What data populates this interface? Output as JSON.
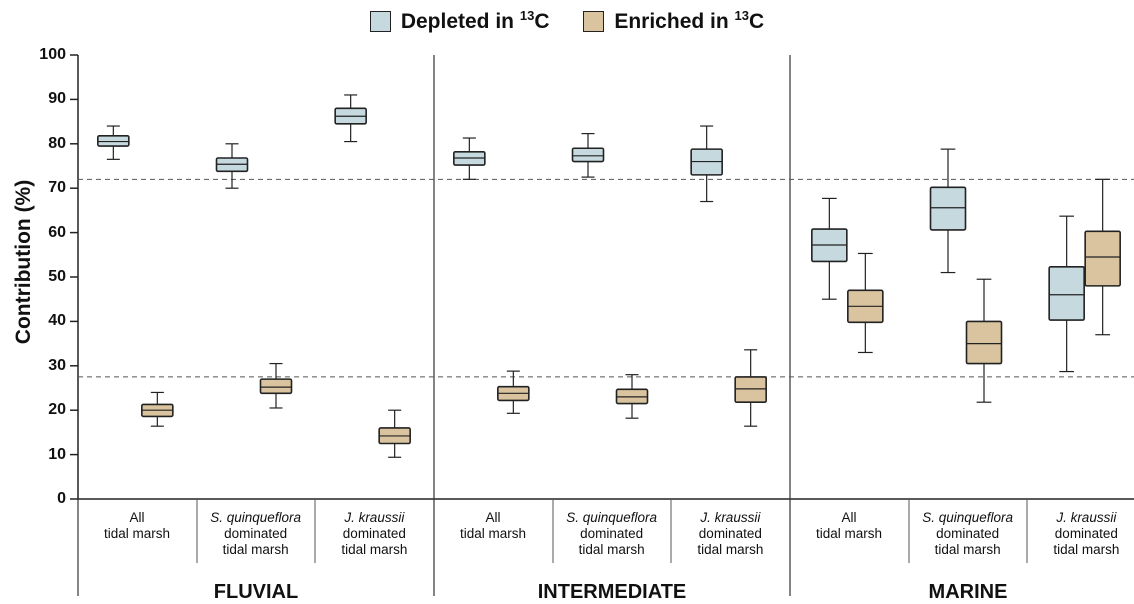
{
  "legend": {
    "depleted": {
      "label": "Depleted in ",
      "sup": "13",
      "tail": "C",
      "color": "#c5d9df"
    },
    "enriched": {
      "label": "Enriched in ",
      "sup": "13",
      "tail": "C",
      "color": "#d9c49f"
    }
  },
  "axis": {
    "ylabel": "Contribution (%)",
    "ticks": [
      "0",
      "10",
      "20",
      "30",
      "40",
      "50",
      "60",
      "70",
      "80",
      "90",
      "100"
    ]
  },
  "categories": [
    {
      "line1": "All",
      "line2": "tidal marsh",
      "line3": ""
    },
    {
      "line1": "S. quinqueflora",
      "line2": "dominated",
      "line3": "tidal marsh"
    },
    {
      "line1": "J. kraussii",
      "line2": "dominated",
      "line3": "tidal marsh"
    }
  ],
  "regions": [
    "FLUVIAL",
    "INTERMEDIATE",
    "MARINE"
  ],
  "chart_data": {
    "type": "box",
    "ylabel": "Contribution (%)",
    "ylim": [
      0,
      100
    ],
    "grid": false,
    "legend_position": "top-center",
    "reference_lines": [
      72,
      27.5
    ],
    "series": [
      {
        "name": "Depleted in 13C",
        "color": "#c5d9df",
        "boxes": [
          {
            "region": "FLUVIAL",
            "category": "All tidal marsh",
            "min": 76.5,
            "q1": 79.5,
            "median": 80.5,
            "q3": 81.8,
            "max": 84
          },
          {
            "region": "FLUVIAL",
            "category": "S. quinqueflora dominated tidal marsh",
            "min": 70,
            "q1": 73.8,
            "median": 75.4,
            "q3": 76.8,
            "max": 80
          },
          {
            "region": "FLUVIAL",
            "category": "J. kraussii dominated tidal marsh",
            "min": 80.5,
            "q1": 84.5,
            "median": 86.2,
            "q3": 88,
            "max": 91
          },
          {
            "region": "INTERMEDIATE",
            "category": "All tidal marsh",
            "min": 72,
            "q1": 75.2,
            "median": 76.8,
            "q3": 78.2,
            "max": 81.3
          },
          {
            "region": "INTERMEDIATE",
            "category": "S. quinqueflora dominated tidal marsh",
            "min": 72.5,
            "q1": 76,
            "median": 77.3,
            "q3": 79,
            "max": 82.3
          },
          {
            "region": "INTERMEDIATE",
            "category": "J. kraussii dominated tidal marsh",
            "min": 67,
            "q1": 73,
            "median": 76,
            "q3": 78.8,
            "max": 84
          },
          {
            "region": "MARINE",
            "category": "All tidal marsh",
            "min": 45,
            "q1": 53.5,
            "median": 57.2,
            "q3": 60.8,
            "max": 67.7
          },
          {
            "region": "MARINE",
            "category": "S. quinqueflora dominated tidal marsh",
            "min": 51,
            "q1": 60.6,
            "median": 65.6,
            "q3": 70.2,
            "max": 78.8
          },
          {
            "region": "MARINE",
            "category": "J. kraussii dominated tidal marsh",
            "min": 28.7,
            "q1": 40.3,
            "median": 46,
            "q3": 52.3,
            "max": 63.7
          }
        ]
      },
      {
        "name": "Enriched in 13C",
        "color": "#d9c49f",
        "boxes": [
          {
            "region": "FLUVIAL",
            "category": "All tidal marsh",
            "min": 16.4,
            "q1": 18.6,
            "median": 20,
            "q3": 21.3,
            "max": 24
          },
          {
            "region": "FLUVIAL",
            "category": "S. quinqueflora dominated tidal marsh",
            "min": 20.5,
            "q1": 23.8,
            "median": 25.2,
            "q3": 27,
            "max": 30.5
          },
          {
            "region": "FLUVIAL",
            "category": "J. kraussii dominated tidal marsh",
            "min": 9.4,
            "q1": 12.5,
            "median": 14.2,
            "q3": 16,
            "max": 20
          },
          {
            "region": "INTERMEDIATE",
            "category": "All tidal marsh",
            "min": 19.3,
            "q1": 22.2,
            "median": 23.8,
            "q3": 25.3,
            "max": 28.8
          },
          {
            "region": "INTERMEDIATE",
            "category": "S. quinqueflora dominated tidal marsh",
            "min": 18.2,
            "q1": 21.5,
            "median": 23,
            "q3": 24.7,
            "max": 28
          },
          {
            "region": "INTERMEDIATE",
            "category": "J. kraussii dominated tidal marsh",
            "min": 16.4,
            "q1": 21.8,
            "median": 24.8,
            "q3": 27.5,
            "max": 33.6
          },
          {
            "region": "MARINE",
            "category": "All tidal marsh",
            "min": 33,
            "q1": 39.8,
            "median": 43.4,
            "q3": 47,
            "max": 55.3
          },
          {
            "region": "MARINE",
            "category": "S. quinqueflora dominated tidal marsh",
            "min": 21.8,
            "q1": 30.5,
            "median": 35,
            "q3": 40,
            "max": 49.5
          },
          {
            "region": "MARINE",
            "category": "J. kraussii dominated tidal marsh",
            "min": 37,
            "q1": 48,
            "median": 54.5,
            "q3": 60.3,
            "max": 72
          }
        ]
      }
    ]
  }
}
